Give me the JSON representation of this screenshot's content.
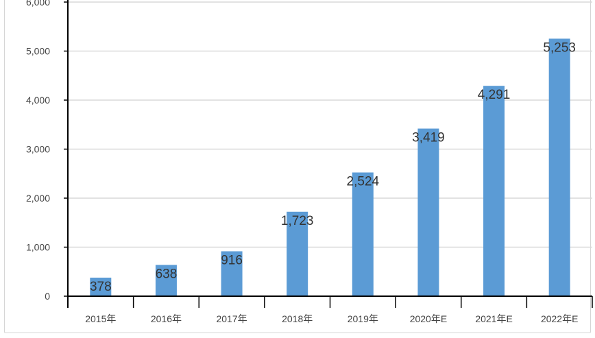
{
  "chart_data": {
    "type": "bar",
    "categories": [
      "2015年",
      "2016年",
      "2017年",
      "2018年",
      "2019年",
      "2020年E",
      "2021年E",
      "2022年E"
    ],
    "values": [
      378,
      638,
      916,
      1723,
      2524,
      3419,
      4291,
      5253
    ],
    "value_labels": [
      "378",
      "638",
      "916",
      "1,723",
      "2,524",
      "3,419",
      "4,291",
      "5,253"
    ],
    "title": "",
    "xlabel": "",
    "ylabel": "",
    "ylim": [
      0,
      6000
    ],
    "yticks": [
      0,
      1000,
      2000,
      3000,
      4000,
      5000,
      6000
    ],
    "ytick_labels": [
      "0",
      "1,000",
      "2,000",
      "3,000",
      "4,000",
      "5,000",
      "6,000"
    ],
    "grid": true,
    "legend": "none",
    "colors": {
      "bar": "#5b9bd5",
      "grid": "#d9d9d9",
      "axis": "#000000"
    }
  }
}
